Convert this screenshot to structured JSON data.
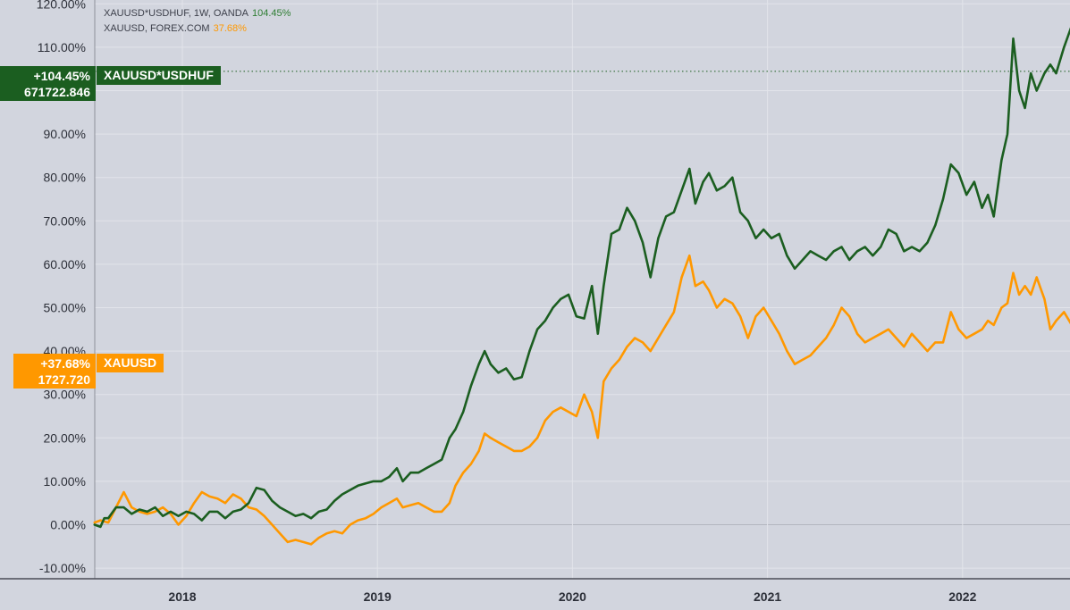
{
  "legend": {
    "green": {
      "text": "XAUUSD*USDHUF, 1W, OANDA",
      "pct": "104.45%"
    },
    "orange": {
      "text": "XAUUSD, FOREX.COM",
      "pct": "37.68%"
    }
  },
  "tags": {
    "green": {
      "pct": "+104.45%",
      "price": "671722.846",
      "name": "XAUUSD*USDHUF"
    },
    "orange": {
      "pct": "+37.68%",
      "price": "1727.720",
      "name": "XAUUSD"
    }
  },
  "colors": {
    "green": "#1b5e20",
    "orange": "#ff9800",
    "background": "#d2d5de",
    "grid": "#e2e4ea"
  },
  "chart_data": {
    "type": "line",
    "title": "",
    "y_unit": "%",
    "ylim": [
      -12,
      121
    ],
    "xlim": [
      2017.55,
      2022.55
    ],
    "grid": true,
    "y_ticks": [
      120,
      110,
      100,
      90,
      80,
      70,
      60,
      50,
      40,
      30,
      20,
      10,
      0,
      -10
    ],
    "y_tick_labels": [
      "120.00%",
      "110.00%",
      "",
      "90.00%",
      "80.00%",
      "70.00%",
      "60.00%",
      "50.00%",
      "40.00%",
      "30.00%",
      "20.00%",
      "10.00%",
      "0.00%",
      "-10.00%"
    ],
    "x_ticks": [
      2018,
      2019,
      2020,
      2021,
      2022
    ],
    "x_tick_labels": [
      "2018",
      "2019",
      "2020",
      "2021",
      "2022"
    ],
    "series": [
      {
        "name": "XAUUSD*USDHUF",
        "color": "#1b5e20",
        "last_value": 104.45,
        "points": [
          [
            2017.55,
            0
          ],
          [
            2017.58,
            -0.5
          ],
          [
            2017.6,
            1.5
          ],
          [
            2017.62,
            1.5
          ],
          [
            2017.66,
            4
          ],
          [
            2017.7,
            4
          ],
          [
            2017.74,
            2.5
          ],
          [
            2017.78,
            3.5
          ],
          [
            2017.82,
            3
          ],
          [
            2017.86,
            4
          ],
          [
            2017.9,
            2
          ],
          [
            2017.94,
            3
          ],
          [
            2017.98,
            2
          ],
          [
            2018.02,
            3
          ],
          [
            2018.06,
            2.5
          ],
          [
            2018.1,
            1
          ],
          [
            2018.14,
            3
          ],
          [
            2018.18,
            3
          ],
          [
            2018.22,
            1.5
          ],
          [
            2018.26,
            3
          ],
          [
            2018.3,
            3.5
          ],
          [
            2018.34,
            5
          ],
          [
            2018.38,
            8.5
          ],
          [
            2018.42,
            8
          ],
          [
            2018.46,
            5.5
          ],
          [
            2018.5,
            4
          ],
          [
            2018.54,
            3
          ],
          [
            2018.58,
            2
          ],
          [
            2018.62,
            2.5
          ],
          [
            2018.66,
            1.5
          ],
          [
            2018.7,
            3
          ],
          [
            2018.74,
            3.5
          ],
          [
            2018.78,
            5.5
          ],
          [
            2018.82,
            7
          ],
          [
            2018.86,
            8
          ],
          [
            2018.9,
            9
          ],
          [
            2018.94,
            9.5
          ],
          [
            2018.98,
            10
          ],
          [
            2019.02,
            10
          ],
          [
            2019.06,
            11
          ],
          [
            2019.1,
            13
          ],
          [
            2019.13,
            10
          ],
          [
            2019.17,
            12
          ],
          [
            2019.21,
            12
          ],
          [
            2019.25,
            13
          ],
          [
            2019.29,
            14
          ],
          [
            2019.33,
            15
          ],
          [
            2019.37,
            20
          ],
          [
            2019.4,
            22
          ],
          [
            2019.44,
            26
          ],
          [
            2019.48,
            32
          ],
          [
            2019.52,
            37
          ],
          [
            2019.55,
            40
          ],
          [
            2019.58,
            37
          ],
          [
            2019.62,
            35
          ],
          [
            2019.66,
            36
          ],
          [
            2019.7,
            33.5
          ],
          [
            2019.74,
            34
          ],
          [
            2019.78,
            40
          ],
          [
            2019.82,
            45
          ],
          [
            2019.86,
            47
          ],
          [
            2019.9,
            50
          ],
          [
            2019.94,
            52
          ],
          [
            2019.98,
            53
          ],
          [
            2020.02,
            48
          ],
          [
            2020.06,
            47.5
          ],
          [
            2020.1,
            55
          ],
          [
            2020.13,
            44
          ],
          [
            2020.16,
            55
          ],
          [
            2020.2,
            67
          ],
          [
            2020.24,
            68
          ],
          [
            2020.28,
            73
          ],
          [
            2020.32,
            70
          ],
          [
            2020.36,
            65
          ],
          [
            2020.4,
            57
          ],
          [
            2020.44,
            66
          ],
          [
            2020.48,
            71
          ],
          [
            2020.52,
            72
          ],
          [
            2020.56,
            77
          ],
          [
            2020.6,
            82
          ],
          [
            2020.63,
            74
          ],
          [
            2020.67,
            79
          ],
          [
            2020.7,
            81
          ],
          [
            2020.74,
            77
          ],
          [
            2020.78,
            78
          ],
          [
            2020.82,
            80
          ],
          [
            2020.86,
            72
          ],
          [
            2020.9,
            70
          ],
          [
            2020.94,
            66
          ],
          [
            2020.98,
            68
          ],
          [
            2021.02,
            66
          ],
          [
            2021.06,
            67
          ],
          [
            2021.1,
            62
          ],
          [
            2021.14,
            59
          ],
          [
            2021.18,
            61
          ],
          [
            2021.22,
            63
          ],
          [
            2021.26,
            62
          ],
          [
            2021.3,
            61
          ],
          [
            2021.34,
            63
          ],
          [
            2021.38,
            64
          ],
          [
            2021.42,
            61
          ],
          [
            2021.46,
            63
          ],
          [
            2021.5,
            64
          ],
          [
            2021.54,
            62
          ],
          [
            2021.58,
            64
          ],
          [
            2021.62,
            68
          ],
          [
            2021.66,
            67
          ],
          [
            2021.7,
            63
          ],
          [
            2021.74,
            64
          ],
          [
            2021.78,
            63
          ],
          [
            2021.82,
            65
          ],
          [
            2021.86,
            69
          ],
          [
            2021.9,
            75
          ],
          [
            2021.94,
            83
          ],
          [
            2021.98,
            81
          ],
          [
            2022.02,
            76
          ],
          [
            2022.06,
            79
          ],
          [
            2022.1,
            73
          ],
          [
            2022.13,
            76
          ],
          [
            2022.16,
            71
          ],
          [
            2022.2,
            84
          ],
          [
            2022.23,
            90
          ],
          [
            2022.26,
            112
          ],
          [
            2022.29,
            100
          ],
          [
            2022.32,
            96
          ],
          [
            2022.35,
            104
          ],
          [
            2022.38,
            100
          ],
          [
            2022.42,
            104
          ],
          [
            2022.45,
            106
          ],
          [
            2022.48,
            104
          ],
          [
            2022.52,
            110
          ],
          [
            2022.56,
            115
          ],
          [
            2022.6,
            112
          ],
          [
            2022.64,
            110
          ],
          [
            2022.68,
            104.45
          ]
        ]
      },
      {
        "name": "XAUUSD",
        "color": "#ff9800",
        "last_value": 37.68,
        "points": [
          [
            2017.55,
            0.5
          ],
          [
            2017.58,
            1
          ],
          [
            2017.62,
            0.5
          ],
          [
            2017.66,
            4
          ],
          [
            2017.7,
            7.5
          ],
          [
            2017.74,
            4
          ],
          [
            2017.78,
            3
          ],
          [
            2017.82,
            2.5
          ],
          [
            2017.86,
            3
          ],
          [
            2017.9,
            4
          ],
          [
            2017.94,
            2.5
          ],
          [
            2017.98,
            0
          ],
          [
            2018.02,
            2
          ],
          [
            2018.06,
            5
          ],
          [
            2018.1,
            7.5
          ],
          [
            2018.14,
            6.5
          ],
          [
            2018.18,
            6
          ],
          [
            2018.22,
            5
          ],
          [
            2018.26,
            7
          ],
          [
            2018.3,
            6
          ],
          [
            2018.34,
            4
          ],
          [
            2018.38,
            3.5
          ],
          [
            2018.42,
            2
          ],
          [
            2018.46,
            0
          ],
          [
            2018.5,
            -2
          ],
          [
            2018.54,
            -4
          ],
          [
            2018.58,
            -3.5
          ],
          [
            2018.62,
            -4
          ],
          [
            2018.66,
            -4.5
          ],
          [
            2018.7,
            -3
          ],
          [
            2018.74,
            -2
          ],
          [
            2018.78,
            -1.5
          ],
          [
            2018.82,
            -2
          ],
          [
            2018.86,
            0
          ],
          [
            2018.9,
            1
          ],
          [
            2018.94,
            1.5
          ],
          [
            2018.98,
            2.5
          ],
          [
            2019.02,
            4
          ],
          [
            2019.06,
            5
          ],
          [
            2019.1,
            6
          ],
          [
            2019.13,
            4
          ],
          [
            2019.17,
            4.5
          ],
          [
            2019.21,
            5
          ],
          [
            2019.25,
            4
          ],
          [
            2019.29,
            3
          ],
          [
            2019.33,
            3
          ],
          [
            2019.37,
            5
          ],
          [
            2019.4,
            9
          ],
          [
            2019.44,
            12
          ],
          [
            2019.48,
            14
          ],
          [
            2019.52,
            17
          ],
          [
            2019.55,
            21
          ],
          [
            2019.58,
            20
          ],
          [
            2019.62,
            19
          ],
          [
            2019.66,
            18
          ],
          [
            2019.7,
            17
          ],
          [
            2019.74,
            17
          ],
          [
            2019.78,
            18
          ],
          [
            2019.82,
            20
          ],
          [
            2019.86,
            24
          ],
          [
            2019.9,
            26
          ],
          [
            2019.94,
            27
          ],
          [
            2019.98,
            26
          ],
          [
            2020.02,
            25
          ],
          [
            2020.06,
            30
          ],
          [
            2020.1,
            26
          ],
          [
            2020.13,
            20
          ],
          [
            2020.16,
            33
          ],
          [
            2020.2,
            36
          ],
          [
            2020.24,
            38
          ],
          [
            2020.28,
            41
          ],
          [
            2020.32,
            43
          ],
          [
            2020.36,
            42
          ],
          [
            2020.4,
            40
          ],
          [
            2020.44,
            43
          ],
          [
            2020.48,
            46
          ],
          [
            2020.52,
            49
          ],
          [
            2020.56,
            57
          ],
          [
            2020.6,
            62
          ],
          [
            2020.63,
            55
          ],
          [
            2020.67,
            56
          ],
          [
            2020.7,
            54
          ],
          [
            2020.74,
            50
          ],
          [
            2020.78,
            52
          ],
          [
            2020.82,
            51
          ],
          [
            2020.86,
            48
          ],
          [
            2020.9,
            43
          ],
          [
            2020.94,
            48
          ],
          [
            2020.98,
            50
          ],
          [
            2021.02,
            47
          ],
          [
            2021.06,
            44
          ],
          [
            2021.1,
            40
          ],
          [
            2021.14,
            37
          ],
          [
            2021.18,
            38
          ],
          [
            2021.22,
            39
          ],
          [
            2021.26,
            41
          ],
          [
            2021.3,
            43
          ],
          [
            2021.34,
            46
          ],
          [
            2021.38,
            50
          ],
          [
            2021.42,
            48
          ],
          [
            2021.46,
            44
          ],
          [
            2021.5,
            42
          ],
          [
            2021.54,
            43
          ],
          [
            2021.58,
            44
          ],
          [
            2021.62,
            45
          ],
          [
            2021.66,
            43
          ],
          [
            2021.7,
            41
          ],
          [
            2021.74,
            44
          ],
          [
            2021.78,
            42
          ],
          [
            2021.82,
            40
          ],
          [
            2021.86,
            42
          ],
          [
            2021.9,
            42
          ],
          [
            2021.94,
            49
          ],
          [
            2021.98,
            45
          ],
          [
            2022.02,
            43
          ],
          [
            2022.06,
            44
          ],
          [
            2022.1,
            45
          ],
          [
            2022.13,
            47
          ],
          [
            2022.16,
            46
          ],
          [
            2022.2,
            50
          ],
          [
            2022.23,
            51
          ],
          [
            2022.26,
            58
          ],
          [
            2022.29,
            53
          ],
          [
            2022.32,
            55
          ],
          [
            2022.35,
            53
          ],
          [
            2022.38,
            57
          ],
          [
            2022.42,
            52
          ],
          [
            2022.45,
            45
          ],
          [
            2022.48,
            47
          ],
          [
            2022.52,
            49
          ],
          [
            2022.56,
            46
          ],
          [
            2022.6,
            43
          ],
          [
            2022.63,
            38
          ],
          [
            2022.66,
            37.68
          ]
        ]
      }
    ]
  }
}
